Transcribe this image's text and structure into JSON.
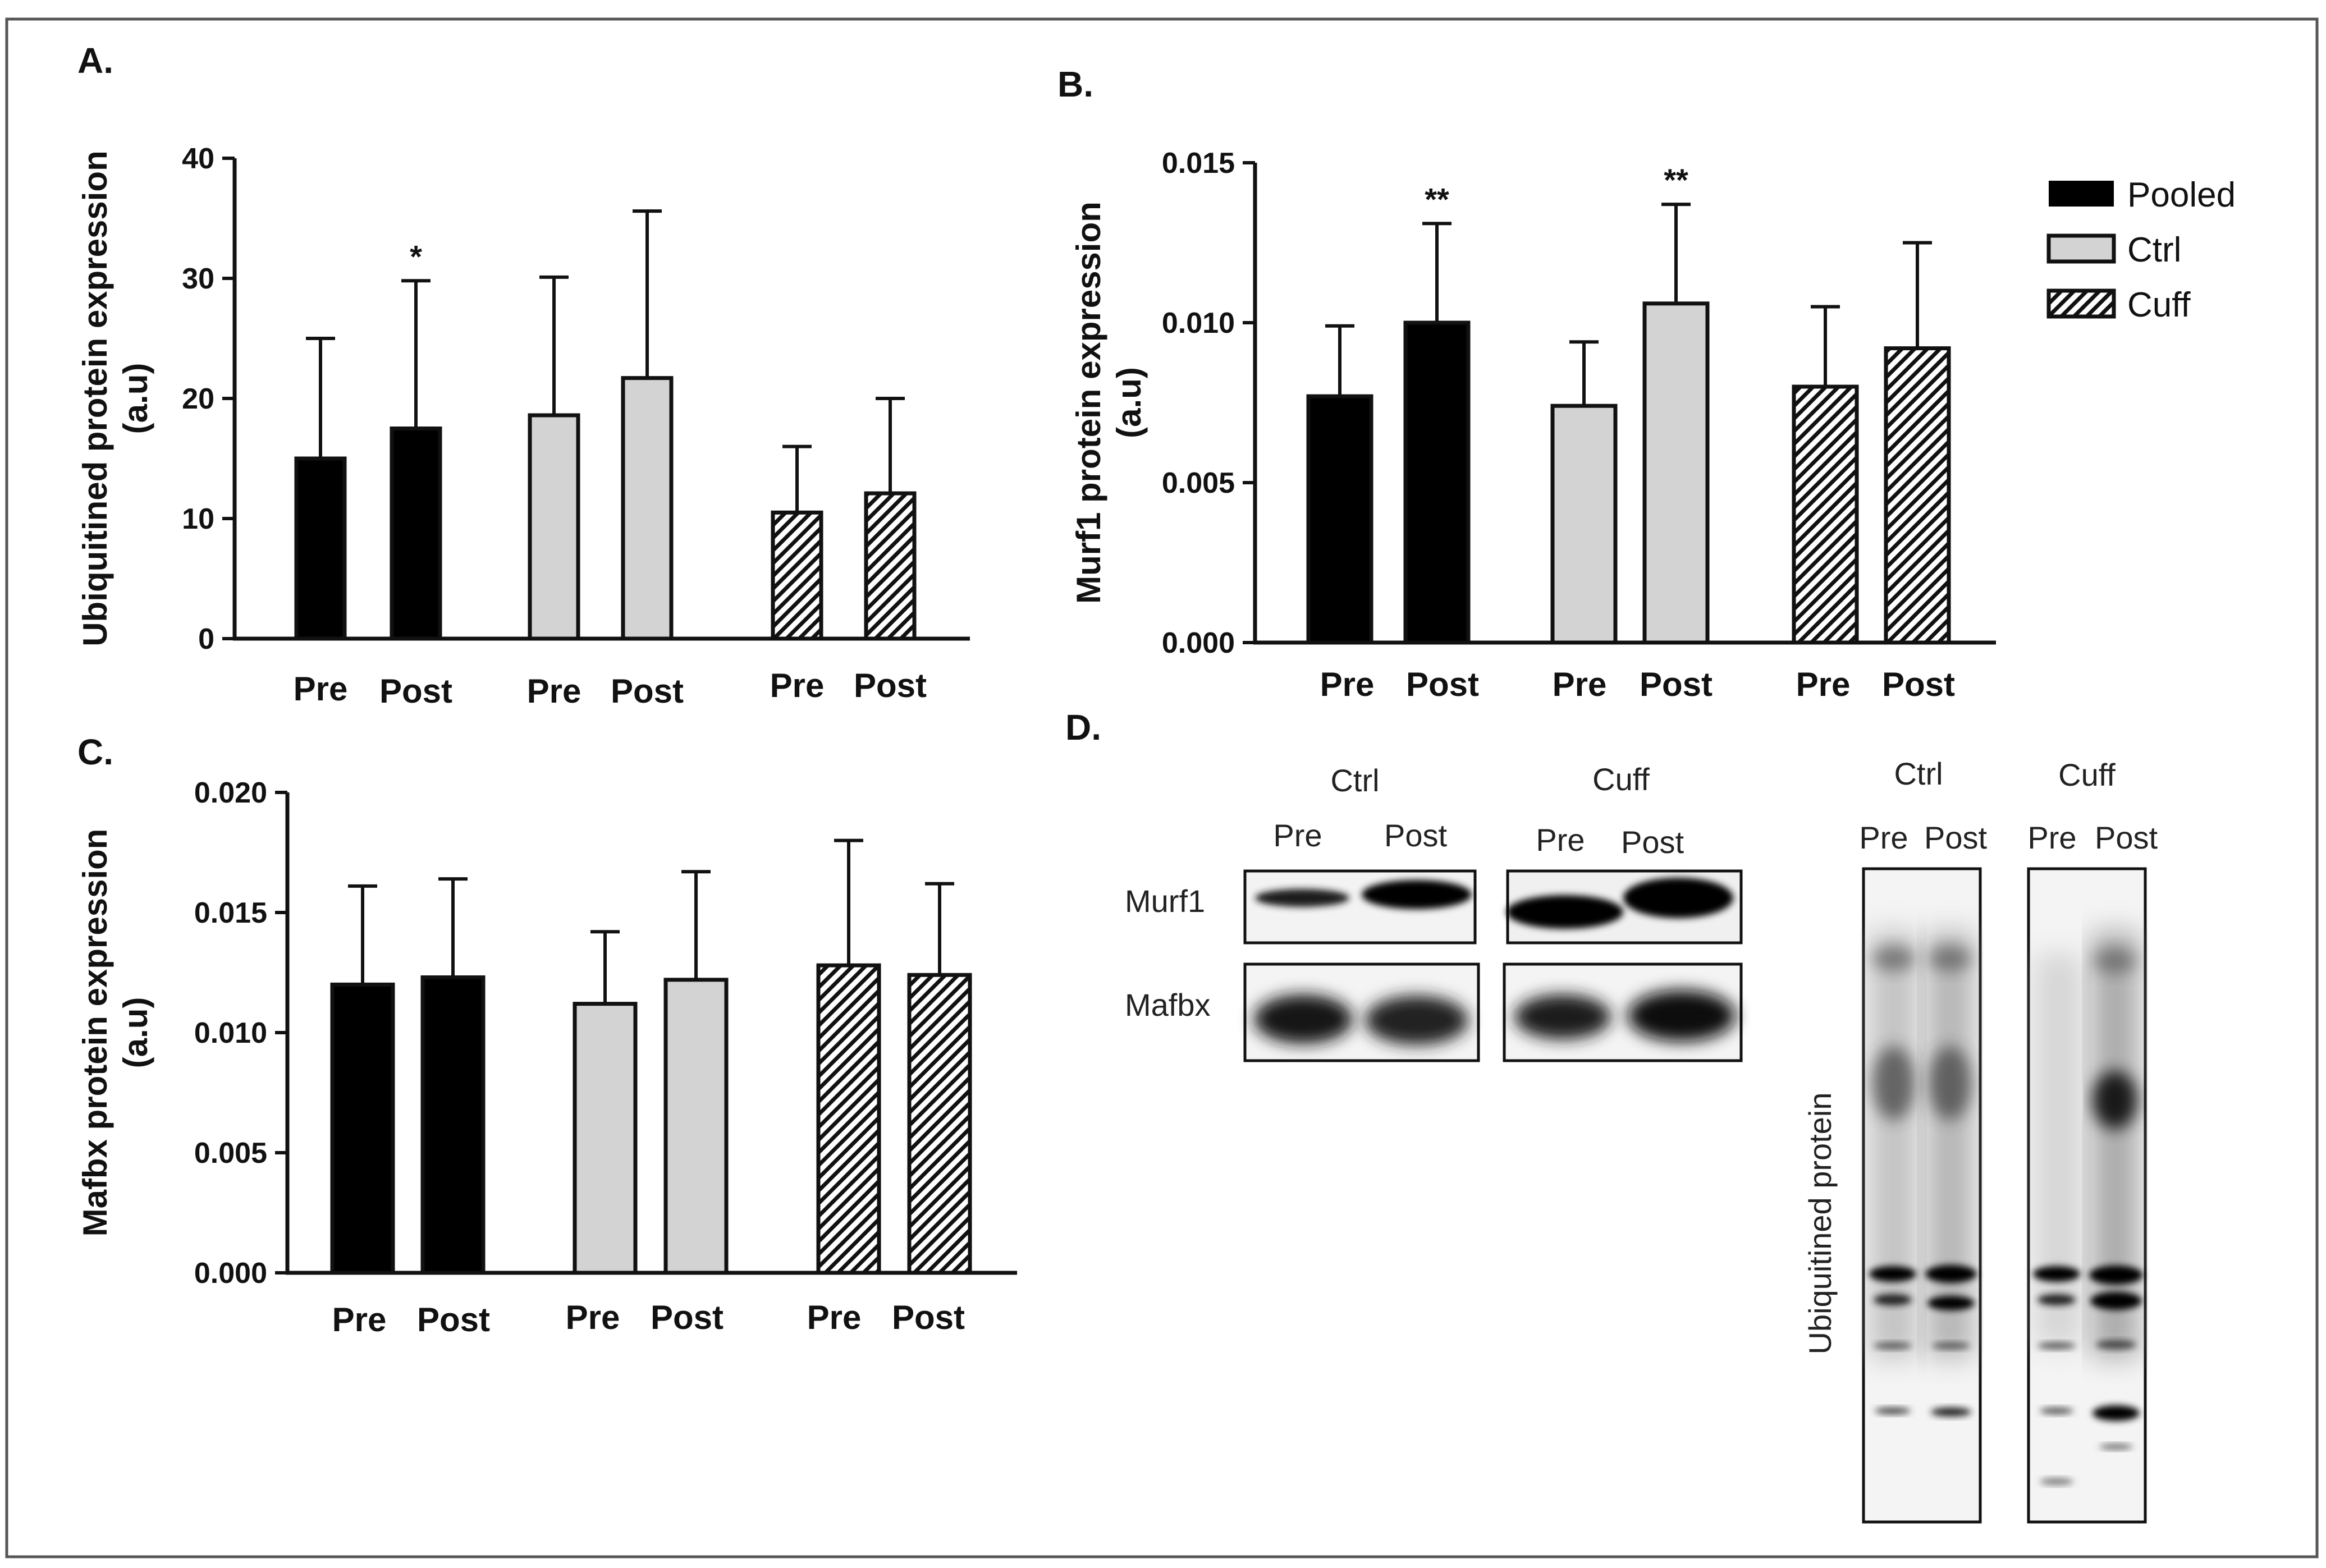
{
  "colors": {
    "pooled": "#000000",
    "ctrl": "#d3d3d3",
    "cuff": "hatch",
    "outline": "#111111",
    "frame": "#555555"
  },
  "legend": [
    "Pooled",
    "Ctrl",
    "Cuff"
  ],
  "panels": {
    "a": {
      "label": "A.",
      "ylabel": [
        "Ubiquitined protein expression",
        "(a.u)"
      ]
    },
    "b": {
      "label": "B.",
      "ylabel": [
        "Murf1 protein expression",
        "(a.u)"
      ]
    },
    "c": {
      "label": "C.",
      "ylabel": [
        "Mafbx protein expression",
        "(a.u)"
      ]
    },
    "d": {
      "label": "D.",
      "group_labels": [
        "Ctrl",
        "Cuff"
      ],
      "lane_labels": [
        "Pre",
        "Post"
      ],
      "row_labels": [
        "Murf1",
        "Mafbx"
      ],
      "side_label": "Ubiquitined protein"
    }
  },
  "chart_data": [
    {
      "panel": "A.",
      "type": "bar",
      "ylabel": "Ubiquitined protein expression (a.u)",
      "ylim": [
        0,
        40
      ],
      "yticks": [
        "0",
        "10",
        "20",
        "30",
        "40"
      ],
      "categories": [
        "Pre",
        "Post",
        "Pre",
        "Post",
        "Pre",
        "Post"
      ],
      "groups": [
        "Pooled",
        "Pooled",
        "Ctrl",
        "Ctrl",
        "Cuff",
        "Cuff"
      ],
      "values": [
        15,
        17.5,
        18.6,
        21.7,
        10.5,
        12.1
      ],
      "error": [
        10,
        12.3,
        11.5,
        13.9,
        5.5,
        7.9
      ],
      "annotations": [
        "",
        "*",
        "",
        "",
        "",
        ""
      ]
    },
    {
      "panel": "B.",
      "type": "bar",
      "ylabel": "Murf1 protein expression (a.u)",
      "ylim": [
        0,
        0.015
      ],
      "yticks": [
        "0.000",
        "0.005",
        "0.010",
        "0.015"
      ],
      "categories": [
        "Pre",
        "Post",
        "Pre",
        "Post",
        "Pre",
        "Post"
      ],
      "groups": [
        "Pooled",
        "Pooled",
        "Ctrl",
        "Ctrl",
        "Cuff",
        "Cuff"
      ],
      "values": [
        0.0077,
        0.01,
        0.0074,
        0.0106,
        0.008,
        0.0092
      ],
      "error": [
        0.0022,
        0.0031,
        0.002,
        0.0031,
        0.0025,
        0.0033
      ],
      "annotations": [
        "",
        "**",
        "",
        "**",
        "",
        ""
      ]
    },
    {
      "panel": "C.",
      "type": "bar",
      "ylabel": "Mafbx protein expression (a.u)",
      "ylim": [
        0,
        0.02
      ],
      "yticks": [
        "0.000",
        "0.005",
        "0.010",
        "0.015",
        "0.020"
      ],
      "categories": [
        "Pre",
        "Post",
        "Pre",
        "Post",
        "Pre",
        "Post"
      ],
      "groups": [
        "Pooled",
        "Pooled",
        "Ctrl",
        "Ctrl",
        "Cuff",
        "Cuff"
      ],
      "values": [
        0.012,
        0.0123,
        0.0112,
        0.0122,
        0.0128,
        0.0124
      ],
      "error": [
        0.0041,
        0.0041,
        0.003,
        0.0045,
        0.0052,
        0.0038
      ],
      "annotations": [
        "",
        "",
        "",
        "",
        "",
        ""
      ]
    }
  ]
}
